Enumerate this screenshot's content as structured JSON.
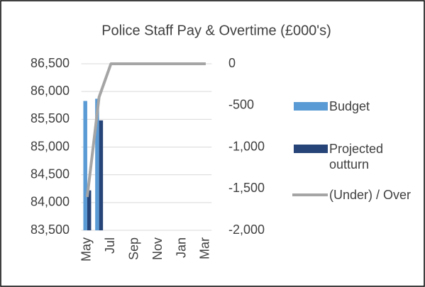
{
  "chart_data": {
    "type": "bar",
    "title": "Police Staff Pay & Overtime (£000's)",
    "categories": [
      "May",
      null,
      "Jul",
      null,
      "Sep",
      null,
      "Nov",
      null,
      "Jan",
      null,
      "Mar"
    ],
    "series": [
      {
        "name": "Budget",
        "color": "#5b9bd5",
        "type": "bar",
        "values": [
          85830,
          85870,
          null,
          null,
          null,
          null,
          null,
          null,
          null,
          null,
          null
        ]
      },
      {
        "name": "Projected outturn",
        "color": "#264478",
        "type": "bar",
        "values": [
          84220,
          85480,
          null,
          null,
          null,
          null,
          null,
          null,
          null,
          null,
          null
        ]
      },
      {
        "name": "(Under) / Over",
        "color": "#a5a5a5",
        "type": "line",
        "axis": "y2",
        "values": [
          -1600,
          -400,
          0,
          0,
          0,
          0,
          0,
          0,
          0,
          0,
          0
        ]
      }
    ],
    "ylim": [
      83500,
      86500
    ],
    "yticks": [
      {
        "value": 83500,
        "label": "83,500"
      },
      {
        "value": 84000,
        "label": "84,000"
      },
      {
        "value": 84500,
        "label": "84,500"
      },
      {
        "value": 85000,
        "label": "85,000"
      },
      {
        "value": 85500,
        "label": "85,500"
      },
      {
        "value": 86000,
        "label": "86,000"
      },
      {
        "value": 86500,
        "label": "86,500"
      }
    ],
    "y2lim": [
      -2000,
      0
    ],
    "y2ticks": [
      {
        "value": -2000,
        "label": "-2,000"
      },
      {
        "value": -1500,
        "label": "-1,500"
      },
      {
        "value": -1000,
        "label": "-1,000"
      },
      -500,
      0
    ],
    "grid": true,
    "legend": "right"
  }
}
